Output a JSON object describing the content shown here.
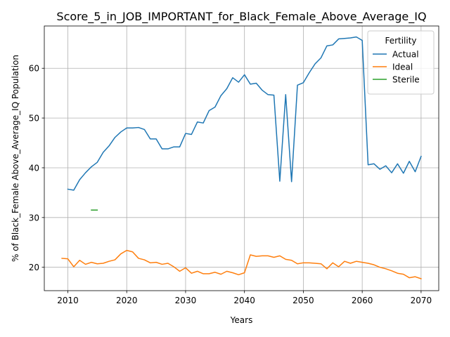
{
  "chart_data": {
    "type": "line",
    "title": "Score_5_in_JOB_IMPORTANT_for_Black_Female_Above_Average_IQ",
    "xlabel": "Years",
    "ylabel": "% of Black_Female Above_Average_IQ Population",
    "xlim": [
      2006,
      2073
    ],
    "ylim": [
      15.3,
      68.5
    ],
    "x_ticks": [
      2010,
      2020,
      2030,
      2040,
      2050,
      2060,
      2070
    ],
    "y_ticks": [
      20,
      30,
      40,
      50,
      60
    ],
    "grid": true,
    "legend": {
      "title": "Fertility",
      "placement": "top-right"
    },
    "series": [
      {
        "name": "Actual",
        "color": "#1f77b4",
        "x": [
          2010,
          2011,
          2012,
          2013,
          2014,
          2015,
          2016,
          2017,
          2018,
          2019,
          2020,
          2021,
          2022,
          2023,
          2024,
          2025,
          2026,
          2027,
          2028,
          2029,
          2030,
          2031,
          2032,
          2033,
          2034,
          2035,
          2036,
          2037,
          2038,
          2039,
          2040,
          2041,
          2042,
          2043,
          2044,
          2045,
          2046,
          2047,
          2048,
          2049,
          2050,
          2051,
          2052,
          2053,
          2054,
          2055,
          2056,
          2057,
          2058,
          2059,
          2060,
          2061,
          2062,
          2063,
          2064,
          2065,
          2066,
          2067,
          2068,
          2069,
          2070
        ],
        "values": [
          35.7,
          35.5,
          37.6,
          39.0,
          40.2,
          41.1,
          43.1,
          44.4,
          46.1,
          47.2,
          48.0,
          48.0,
          48.1,
          47.7,
          45.8,
          45.8,
          43.8,
          43.8,
          44.2,
          44.2,
          46.9,
          46.7,
          49.2,
          49.0,
          51.5,
          52.2,
          54.5,
          55.9,
          58.1,
          57.2,
          58.7,
          56.8,
          57.0,
          55.6,
          54.7,
          54.6,
          37.3,
          54.7,
          37.2,
          56.6,
          57.1,
          59.1,
          60.9,
          62.1,
          64.5,
          64.7,
          65.9,
          66.0,
          66.1,
          66.3,
          65.6,
          40.6,
          40.8,
          39.7,
          40.4,
          39.0,
          40.8,
          38.9,
          41.3,
          39.2,
          42.3
        ]
      },
      {
        "name": "Ideal",
        "color": "#ff7f0e",
        "x": [
          2009,
          2010,
          2011,
          2012,
          2013,
          2014,
          2015,
          2016,
          2017,
          2018,
          2019,
          2020,
          2021,
          2022,
          2023,
          2024,
          2025,
          2026,
          2027,
          2028,
          2029,
          2030,
          2031,
          2032,
          2033,
          2034,
          2035,
          2036,
          2037,
          2038,
          2039,
          2040,
          2041,
          2042,
          2043,
          2044,
          2045,
          2046,
          2047,
          2048,
          2049,
          2050,
          2051,
          2052,
          2053,
          2054,
          2055,
          2056,
          2057,
          2058,
          2059,
          2060,
          2061,
          2062,
          2063,
          2064,
          2065,
          2066,
          2067,
          2068,
          2069,
          2070
        ],
        "values": [
          21.8,
          21.7,
          20.1,
          21.4,
          20.6,
          21.0,
          20.7,
          20.8,
          21.2,
          21.5,
          22.7,
          23.4,
          23.1,
          21.8,
          21.5,
          20.9,
          21.0,
          20.6,
          20.8,
          20.1,
          19.2,
          19.9,
          18.8,
          19.2,
          18.7,
          18.7,
          19.0,
          18.6,
          19.2,
          18.9,
          18.5,
          18.9,
          22.5,
          22.2,
          22.3,
          22.3,
          22.0,
          22.3,
          21.6,
          21.4,
          20.7,
          20.9,
          20.9,
          20.8,
          20.7,
          19.7,
          20.9,
          20.1,
          21.2,
          20.8,
          21.2,
          21.0,
          20.8,
          20.5,
          20.0,
          19.7,
          19.3,
          18.8,
          18.6,
          17.9,
          18.1,
          17.7
        ]
      },
      {
        "name": "Sterile",
        "color": "#2ca02c",
        "x": [
          2014,
          2015
        ],
        "values": [
          31.5,
          31.5
        ]
      }
    ]
  }
}
